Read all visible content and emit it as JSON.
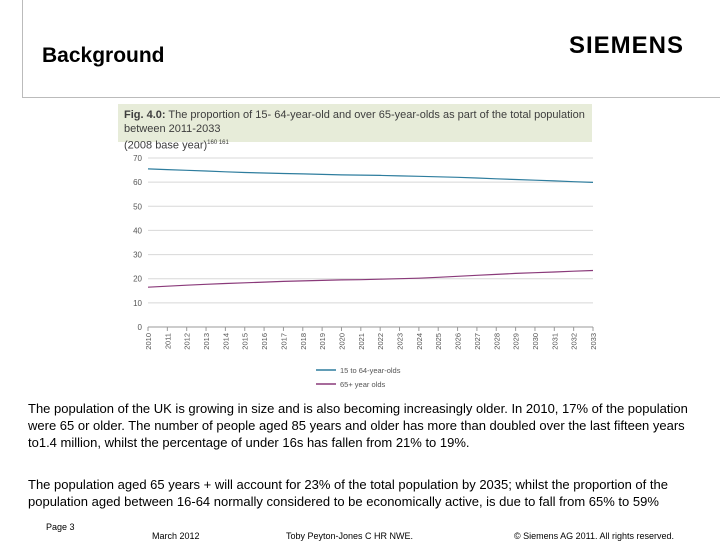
{
  "slide": {
    "title": "Background",
    "logo": "SIEMENS",
    "paragraphs": [
      "The population of the UK is growing in size and is also becoming increasingly older. In 2010, 17% of the population were 65 or older. The number of people aged 85 years and older has more than doubled over the last fifteen years to1.4 million, whilst the percentage of under 16s has fallen from 21% to 19%.",
      "The population aged 65 years + will account for 23% of the total population by 2035; whilst the proportion of the population aged between 16-64 normally considered to be economically active, is due to fall from 65% to 59%"
    ]
  },
  "footer": {
    "page": "Page 3",
    "date": "March 2012",
    "author": "Toby Peyton-Jones C HR NWE.",
    "copyright": "© Siemens AG 2011. All rights reserved."
  },
  "colors": {
    "series_15_64": "#2e7d9e",
    "series_65_plus": "#8a3a7a",
    "header_bg": "#e7ecd9",
    "grid": "#d8d8d8"
  },
  "chart_data": {
    "type": "line",
    "title_prefix": "Fig. 4.0:",
    "title": "The proportion of 15- 64-year-old and over 65-year-olds as part of the total population between 2011-2033",
    "subtitle": "(2008 base year)",
    "subtitle_ref": "160 161",
    "x": [
      "2010",
      "2011",
      "2012",
      "2013",
      "2014",
      "2015",
      "2016",
      "2017",
      "2018",
      "2019",
      "2020",
      "2021",
      "2022",
      "2023",
      "2024",
      "2025",
      "2026",
      "2027",
      "2028",
      "2029",
      "2030",
      "2031",
      "2032",
      "2033"
    ],
    "series": [
      {
        "name": "15 to 64-year-olds",
        "values": [
          65.5,
          65.2,
          64.9,
          64.6,
          64.3,
          64.0,
          63.8,
          63.6,
          63.4,
          63.2,
          63.0,
          62.9,
          62.8,
          62.6,
          62.4,
          62.2,
          62.0,
          61.7,
          61.4,
          61.1,
          60.8,
          60.5,
          60.2,
          59.9
        ]
      },
      {
        "name": "65+ year olds",
        "values": [
          16.5,
          16.9,
          17.3,
          17.7,
          18.0,
          18.3,
          18.6,
          18.9,
          19.1,
          19.3,
          19.5,
          19.6,
          19.8,
          20.0,
          20.2,
          20.6,
          21.0,
          21.4,
          21.8,
          22.2,
          22.5,
          22.8,
          23.1,
          23.4
        ]
      }
    ],
    "yticks": [
      0,
      10,
      20,
      30,
      40,
      50,
      60,
      70
    ],
    "ylim": [
      0,
      70
    ],
    "grid": true,
    "legend": "bottom-center"
  }
}
